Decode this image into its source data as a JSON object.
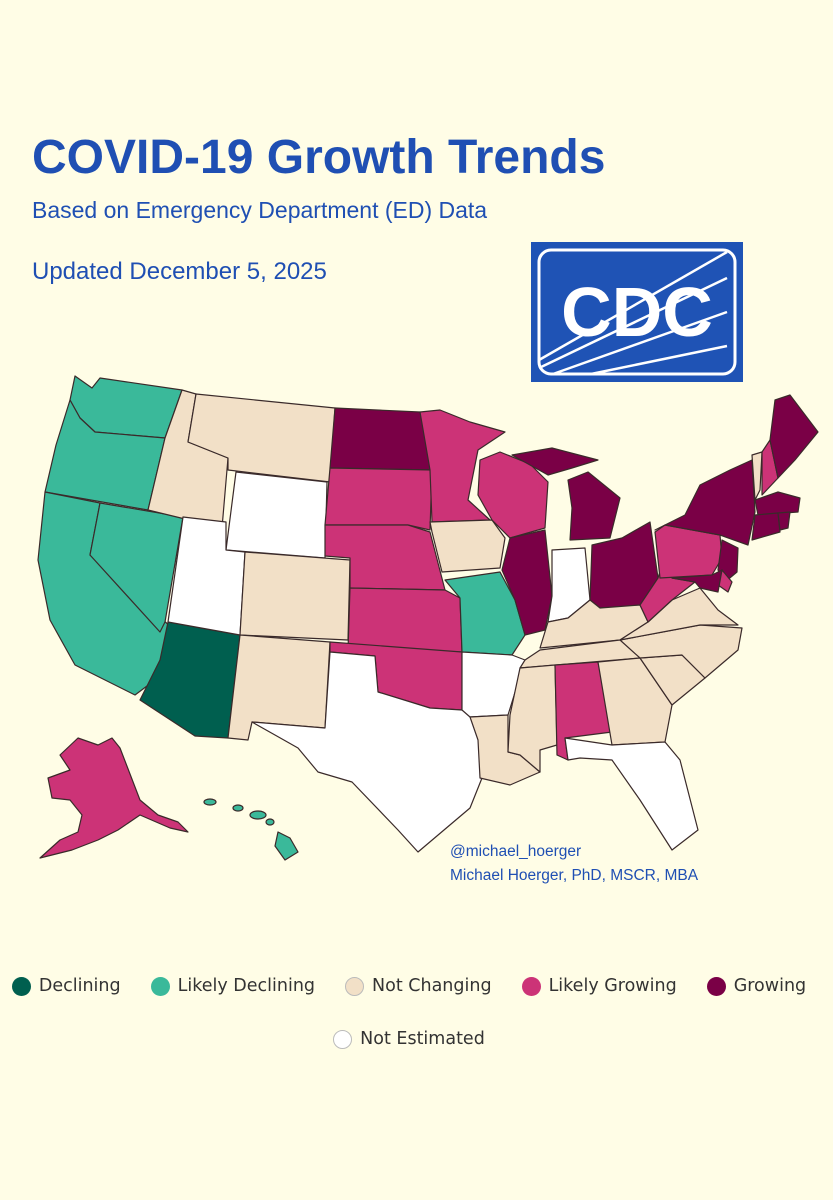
{
  "header": {
    "title": "COVID-19 Growth Trends",
    "subtitle": "Based on Emergency Department (ED) Data",
    "updated": "Updated December 5, 2025"
  },
  "logo": {
    "text": "CDC",
    "background": "#1f53b5"
  },
  "credits": {
    "handle": "@michael_hoerger",
    "author": "Michael Hoerger, PhD, MSCR, MBA"
  },
  "categories": [
    {
      "id": "declining",
      "label": "Declining",
      "color": "#005f4f"
    },
    {
      "id": "likely-declining",
      "label": "Likely Declining",
      "color": "#3ab99a"
    },
    {
      "id": "not-changing",
      "label": "Not Changing",
      "color": "#f2e0c7"
    },
    {
      "id": "likely-growing",
      "label": "Likely Growing",
      "color": "#cc3377"
    },
    {
      "id": "growing",
      "label": "Growing",
      "color": "#7a0046"
    },
    {
      "id": "not-estimated",
      "label": "Not Estimated",
      "color": "#ffffff"
    }
  ],
  "state_status": {
    "AZ": "declining",
    "WA": "likely-declining",
    "OR": "likely-declining",
    "CA": "likely-declining",
    "NV": "likely-declining",
    "MO": "likely-declining",
    "HI": "likely-declining",
    "MT": "not-changing",
    "ID": "not-changing",
    "CO": "not-changing",
    "NM": "not-changing",
    "IA": "not-changing",
    "KY": "not-changing",
    "TN": "not-changing",
    "VA": "not-changing",
    "NC": "not-changing",
    "SC": "not-changing",
    "GA": "not-changing",
    "MS": "not-changing",
    "LA": "not-changing",
    "VT": "not-changing",
    "MN": "likely-growing",
    "SD": "likely-growing",
    "NE": "likely-growing",
    "KS": "likely-growing",
    "OK": "likely-growing",
    "WI": "likely-growing",
    "AL": "likely-growing",
    "WV": "likely-growing",
    "PA": "likely-growing",
    "NH": "likely-growing",
    "AK": "likely-growing",
    "DE": "likely-growing",
    "ND": "growing",
    "IL": "growing",
    "MI": "growing",
    "OH": "growing",
    "NY": "growing",
    "ME": "growing",
    "MA": "growing",
    "CT": "growing",
    "RI": "growing",
    "NJ": "growing",
    "MD": "growing",
    "WY": "not-estimated",
    "UT": "not-estimated",
    "TX": "not-estimated",
    "AR": "not-estimated",
    "IN": "not-estimated",
    "FL": "not-estimated"
  }
}
